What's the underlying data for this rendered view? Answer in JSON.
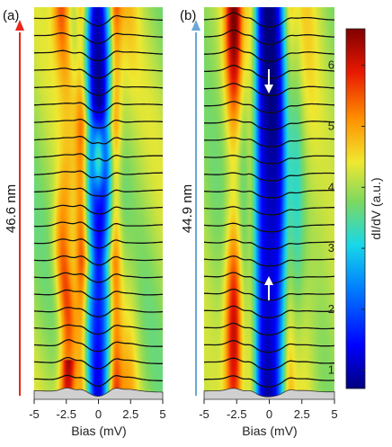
{
  "chart_data": {
    "type": "heatmap",
    "panels": [
      {
        "label": "(a)",
        "length_label": "46.6 nm",
        "arrow_color": "#e8261c",
        "xlabel": "Bias (mV)",
        "xlim": [
          -5,
          5
        ],
        "xticks": [
          "-5",
          "-2.5",
          "0",
          "2.5",
          "5"
        ],
        "num_spectra": 22
      },
      {
        "label": "(b)",
        "length_label": "44.9 nm",
        "arrow_color": "#6aa6d6",
        "xlabel": "Bias (mV)",
        "xlim": [
          -5,
          5
        ],
        "xticks": [
          "-5",
          "-2.5",
          "0",
          "2.5",
          "5"
        ],
        "num_spectra": 22,
        "annotations": [
          "down-arrow",
          "up-arrow"
        ]
      }
    ],
    "colorbar": {
      "label": "dI/dV (a.u.)",
      "range": [
        0.7,
        6.6
      ],
      "ticks": [
        "1",
        "2",
        "3",
        "4",
        "5",
        "6"
      ],
      "colormap": [
        "#00007f",
        "#0000ff",
        "#0080ff",
        "#18d8e8",
        "#7dd860",
        "#f0e830",
        "#ff9000",
        "#e81800",
        "#800000"
      ]
    }
  }
}
